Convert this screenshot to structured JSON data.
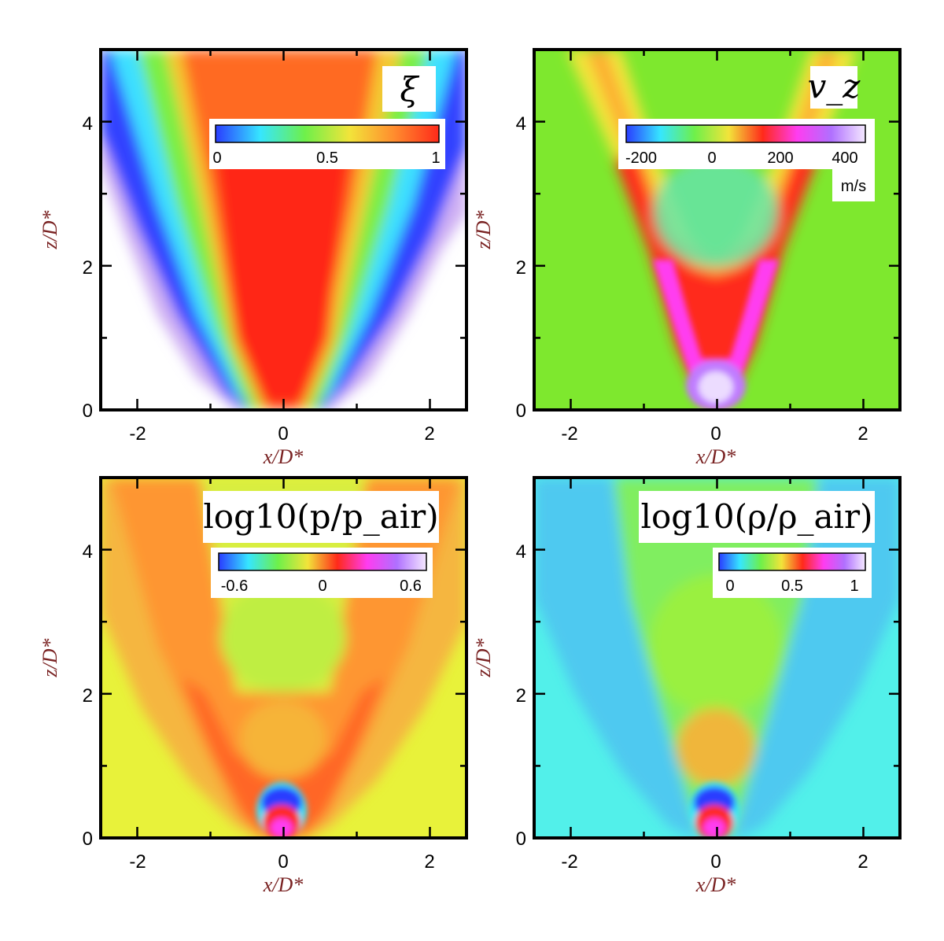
{
  "chart_data": [
    {
      "type": "heatmap",
      "title": "ξ",
      "xlabel": "x/D*",
      "ylabel": "z/D*",
      "xlim": [
        -2.5,
        2.5
      ],
      "ylim": [
        0,
        5
      ],
      "xticks": [
        "-2",
        "0",
        "2"
      ],
      "yticks": [
        "0",
        "2",
        "4"
      ],
      "colorbar": {
        "ticks": [
          "0",
          "0.5",
          "1"
        ],
        "range": [
          0,
          1
        ],
        "unit": ""
      },
      "background": "#ffffff",
      "colormap": [
        "#2a3cff",
        "#36e6ff",
        "#6ef04a",
        "#f2e43a",
        "#ff8c2e",
        "#ff2a1a"
      ]
    },
    {
      "type": "heatmap",
      "title": "v_z",
      "xlabel": "x/D*",
      "ylabel": "z/D*",
      "xlim": [
        -2.5,
        2.5
      ],
      "ylim": [
        0,
        5
      ],
      "xticks": [
        "-2",
        "0",
        "2"
      ],
      "yticks": [
        "0",
        "2",
        "4"
      ],
      "colorbar": {
        "ticks": [
          "-200",
          "0",
          "200",
          "400"
        ],
        "range": [
          -250,
          450
        ],
        "unit": "m/s"
      },
      "background": "#7ee82e",
      "colormap": [
        "#2a3cff",
        "#36e6ff",
        "#6ef04a",
        "#f2e43a",
        "#ff2a1a",
        "#ff3cf0",
        "#b070ff",
        "#f4e8ff"
      ]
    },
    {
      "type": "heatmap",
      "title": "log10(p/p_air)",
      "xlabel": "x/D*",
      "ylabel": "z/D*",
      "xlim": [
        -2.5,
        2.5
      ],
      "ylim": [
        0,
        5
      ],
      "xticks": [
        "-2",
        "0",
        "2"
      ],
      "yticks": [
        "0",
        "2",
        "4"
      ],
      "colorbar": {
        "ticks": [
          "-0.6",
          "0",
          "0.6"
        ],
        "range": [
          -0.75,
          0.75
        ],
        "unit": ""
      },
      "background": "#e8f23a",
      "colormap": [
        "#2a3cff",
        "#36e6ff",
        "#6ef04a",
        "#f2e43a",
        "#ff2a1a",
        "#ff3cf0",
        "#b070ff",
        "#f4e8ff"
      ]
    },
    {
      "type": "heatmap",
      "title": "log10(ρ/ρ_air)",
      "xlabel": "x/D*",
      "ylabel": "z/D*",
      "xlim": [
        -2.5,
        2.5
      ],
      "ylim": [
        0,
        5
      ],
      "xticks": [
        "-2",
        "0",
        "2"
      ],
      "yticks": [
        "0",
        "2",
        "4"
      ],
      "colorbar": {
        "ticks": [
          "0",
          "0.5",
          "1"
        ],
        "range": [
          -0.15,
          1.15
        ],
        "unit": ""
      },
      "background": "#52f0ea",
      "colormap": [
        "#2a3cff",
        "#36e6ff",
        "#6ef04a",
        "#f2e43a",
        "#ff2a1a",
        "#ff3cf0",
        "#b070ff",
        "#f4e8ff"
      ]
    }
  ]
}
